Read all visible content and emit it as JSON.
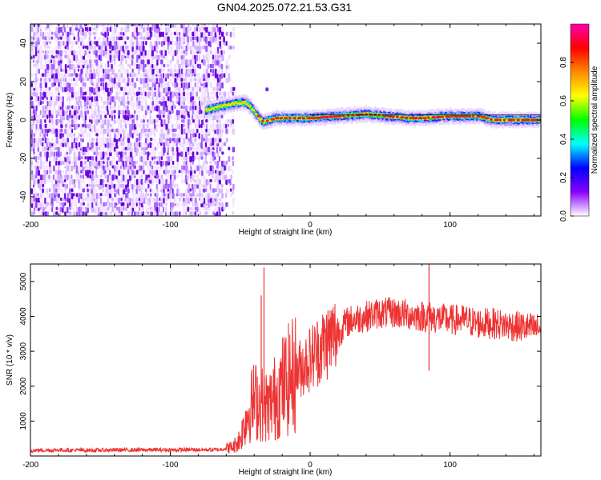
{
  "title": "GN04.2025.072.21.53.G31",
  "chart_data": [
    {
      "type": "heatmap",
      "xlabel": "Height of straight line (km)",
      "ylabel": "Frequency (Hz)",
      "xlim": [
        -200,
        165
      ],
      "ylim": [
        -50,
        50
      ],
      "xticks": [
        -200,
        -100,
        0,
        100
      ],
      "yticks": [
        -40,
        -20,
        0,
        20,
        40
      ],
      "colorbar": {
        "label": "Normalized spectral amplitude",
        "range": [
          0,
          1
        ],
        "ticks": [
          0.0,
          0.2,
          0.4,
          0.6,
          0.8
        ],
        "colormap": [
          "#ffffff",
          "#8800ff",
          "#0000ff",
          "#00ffff",
          "#00ff00",
          "#ffff00",
          "#ff8800",
          "#ff0000",
          "#ff00aa"
        ]
      },
      "noise_region_x": [
        -200,
        -60
      ],
      "ridge": {
        "x": [
          -75,
          -65,
          -58,
          -52,
          -47,
          -43,
          -40,
          -37,
          -34,
          -30,
          -25,
          -15,
          0,
          20,
          40,
          55,
          70,
          80,
          100,
          120,
          130,
          145,
          165
        ],
        "y": [
          5,
          7,
          8,
          9,
          9,
          7,
          4,
          1,
          -1,
          0,
          1,
          1,
          1,
          2,
          3,
          2,
          1,
          1,
          2,
          2,
          0,
          0,
          0
        ]
      }
    },
    {
      "type": "line",
      "xlabel": "Height of straight line (km)",
      "ylabel": "SNR (10 * v/v)",
      "xlim": [
        -200,
        165
      ],
      "ylim": [
        0,
        5500
      ],
      "xticks": [
        -200,
        -100,
        0,
        100
      ],
      "yticks": [
        1000,
        2000,
        3000,
        4000,
        5000
      ],
      "color": "#ee3333",
      "series": [
        {
          "x": [
            -200,
            -180,
            -160,
            -140,
            -120,
            -100,
            -80,
            -65,
            -55,
            -50,
            -45,
            -40,
            -35,
            -30,
            -25,
            -20,
            -15,
            -10,
            -5,
            0,
            5,
            10,
            15,
            20,
            25,
            30,
            40,
            50,
            60,
            70,
            80,
            85,
            90,
            100,
            110,
            120,
            130,
            140,
            150,
            160,
            165
          ],
          "values": [
            160,
            170,
            165,
            170,
            175,
            175,
            180,
            180,
            260,
            500,
            1200,
            1600,
            1500,
            1400,
            1700,
            2000,
            2200,
            2400,
            2600,
            2800,
            3000,
            3200,
            3400,
            3500,
            3800,
            3900,
            4000,
            4100,
            4100,
            4050,
            4000,
            4000,
            3950,
            3900,
            3900,
            3800,
            3800,
            3750,
            3700,
            3650,
            3650
          ]
        }
      ],
      "spikes": [
        {
          "x": -33,
          "y": 5400
        },
        {
          "x": -35,
          "y": 4600
        },
        {
          "x": 85,
          "y": 5500
        },
        {
          "x": 85,
          "y": 2450
        },
        {
          "x": -25,
          "y": 450
        }
      ]
    }
  ]
}
